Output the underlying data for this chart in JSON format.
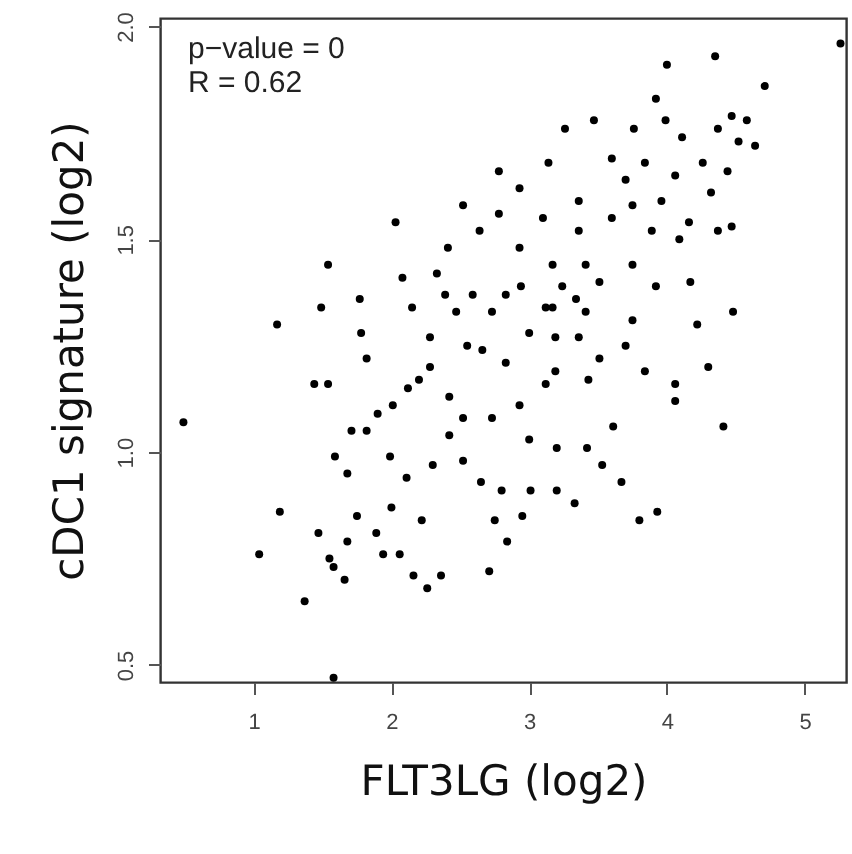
{
  "chart_data": {
    "type": "scatter",
    "xlabel": "FLT3LG (log2)",
    "ylabel": "cDC1 signature (log2)",
    "annotations": [
      "p−value = 0",
      "R = 0.62"
    ],
    "xlim": [
      0.32,
      5.3
    ],
    "ylim": [
      0.46,
      2.02
    ],
    "xticks": [
      1,
      2,
      3,
      4,
      5
    ],
    "yticks": [
      0.5,
      {
        "value": 1,
        "label": "1.0"
      },
      1.5,
      {
        "value": 2,
        "label": "2.0"
      }
    ],
    "grid": false,
    "marker": "circle",
    "series": [
      {
        "color": "#000000",
        "x": [
          5.26,
          4.35,
          4.0,
          4.71,
          3.92,
          3.99,
          4.64,
          4.47,
          4.58,
          3.47,
          3.26,
          3.76,
          4.11,
          4.37,
          2.78,
          2.52,
          2.03,
          1.54,
          1.17,
          1.49,
          0.49,
          1.44,
          1.54,
          1.19,
          1.04,
          1.37,
          1.58,
          1.47,
          1.55,
          1.66,
          1.58,
          1.68,
          1.75,
          1.89,
          2.0,
          1.94,
          2.06,
          2.16,
          2.26,
          2.36,
          2.22,
          2.71,
          2.84,
          2.95,
          2.75,
          3.33,
          3.8,
          3.93,
          3.67,
          4.41,
          4.3,
          4.06,
          4.06,
          4.22,
          4.48,
          4.17,
          4.47,
          4.44,
          4.52,
          4.26,
          4.32,
          4.37,
          1.68,
          1.59,
          1.71,
          1.82,
          1.99,
          1.9,
          2.01,
          2.12,
          2.28,
          2.11,
          2.3,
          2.42,
          2.52,
          2.65,
          2.8,
          3.01,
          3.2,
          3.2,
          3.0,
          3.12,
          3.42,
          3.53,
          3.61,
          1.78,
          1.77,
          1.82,
          2.08,
          2.15,
          2.33,
          2.41,
          2.39,
          2.28,
          2.55,
          2.59,
          2.64,
          2.78,
          2.93,
          3.14,
          2.93,
          2.94,
          2.73,
          2.66,
          2.83,
          3.0,
          3.12,
          3.24,
          3.36,
          3.36,
          3.6,
          3.7,
          3.84,
          3.96,
          4.06,
          3.89,
          3.75,
          3.51,
          3.41,
          3.17,
          3.1,
          3.6,
          3.75,
          4.16,
          4.09,
          3.92,
          3.75,
          3.7,
          3.51,
          3.36,
          3.19,
          2.83,
          2.47,
          2.2,
          2.42,
          2.52,
          2.73,
          2.93,
          3.19,
          3.43,
          3.84,
          3.17,
          3.34,
          3.41
        ],
        "values": [
          1.96,
          1.93,
          1.91,
          1.86,
          1.83,
          1.78,
          1.72,
          1.79,
          1.78,
          1.78,
          1.76,
          1.76,
          1.74,
          1.76,
          1.66,
          1.58,
          1.54,
          1.44,
          1.3,
          1.34,
          1.07,
          1.16,
          1.16,
          0.86,
          0.76,
          0.65,
          0.47,
          0.81,
          0.75,
          0.7,
          0.73,
          0.79,
          0.85,
          0.81,
          0.87,
          0.76,
          0.76,
          0.71,
          0.68,
          0.71,
          0.84,
          0.72,
          0.79,
          0.85,
          0.84,
          0.88,
          0.84,
          0.86,
          0.93,
          1.06,
          1.2,
          1.12,
          1.16,
          1.3,
          1.33,
          1.4,
          1.53,
          1.66,
          1.73,
          1.68,
          1.61,
          1.52,
          0.95,
          0.99,
          1.05,
          1.05,
          0.99,
          1.09,
          1.11,
          1.15,
          1.2,
          0.94,
          0.97,
          1.04,
          0.98,
          0.93,
          0.91,
          0.91,
          0.91,
          1.01,
          1.03,
          1.16,
          1.01,
          0.97,
          1.06,
          1.28,
          1.36,
          1.22,
          1.41,
          1.34,
          1.42,
          1.48,
          1.37,
          1.27,
          1.25,
          1.37,
          1.52,
          1.56,
          1.62,
          1.68,
          1.48,
          1.39,
          1.33,
          1.24,
          1.21,
          1.28,
          1.34,
          1.39,
          1.52,
          1.59,
          1.69,
          1.64,
          1.68,
          1.59,
          1.65,
          1.52,
          1.44,
          1.4,
          1.44,
          1.44,
          1.55,
          1.55,
          1.58,
          1.54,
          1.5,
          1.39,
          1.31,
          1.25,
          1.22,
          1.27,
          1.27,
          1.37,
          1.33,
          1.17,
          1.13,
          1.08,
          1.08,
          1.11,
          1.19,
          1.17,
          1.19,
          1.34,
          1.36,
          1.33
        ]
      }
    ]
  }
}
